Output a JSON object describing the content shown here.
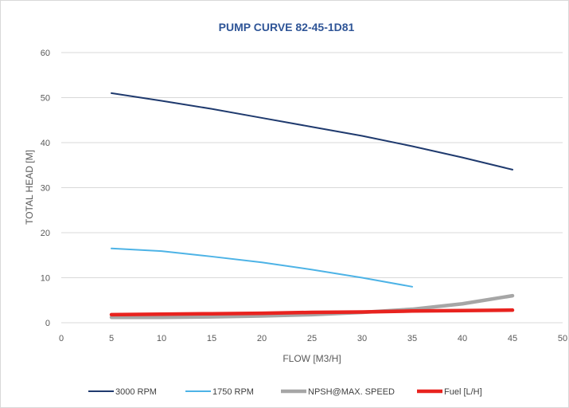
{
  "chart_data": {
    "type": "line",
    "title": "PUMP CURVE 82-45-1D81",
    "xlabel": "FLOW [M3/H]",
    "ylabel": "TOTAL HEAD [M]",
    "xlim": [
      0,
      50
    ],
    "ylim": [
      0,
      60
    ],
    "x_ticks": [
      "0",
      "5",
      "10",
      "15",
      "20",
      "25",
      "30",
      "35",
      "40",
      "45",
      "50"
    ],
    "y_ticks": [
      "0",
      "10",
      "20",
      "30",
      "40",
      "50",
      "60"
    ],
    "grid": "horizontal",
    "legend_position": "bottom",
    "series": [
      {
        "name": "3000 RPM",
        "color": "#1f3a6e",
        "width": "thin",
        "x": [
          5,
          10,
          15,
          20,
          25,
          30,
          35,
          40,
          45
        ],
        "y": [
          51,
          49.3,
          47.5,
          45.5,
          43.5,
          41.5,
          39.2,
          36.7,
          34
        ]
      },
      {
        "name": "1750 RPM",
        "color": "#4db3e6",
        "width": "thin",
        "x": [
          5,
          10,
          15,
          20,
          25,
          30,
          35
        ],
        "y": [
          16.5,
          15.9,
          14.7,
          13.4,
          11.8,
          10,
          8
        ]
      },
      {
        "name": "NPSH@MAX. SPEED",
        "color": "#a6a6a6",
        "width": "thick",
        "x": [
          5,
          10,
          15,
          20,
          25,
          30,
          35,
          40,
          45
        ],
        "y": [
          1.2,
          1.2,
          1.3,
          1.5,
          1.8,
          2.3,
          3.0,
          4.2,
          6.0
        ]
      },
      {
        "name": "Fuel [L/H]",
        "color": "#e8231f",
        "width": "thick",
        "x": [
          5,
          10,
          15,
          20,
          25,
          30,
          35,
          40,
          45
        ],
        "y": [
          1.8,
          1.9,
          2.0,
          2.1,
          2.3,
          2.4,
          2.6,
          2.7,
          2.8
        ]
      }
    ]
  },
  "colors": {
    "title": "#2f5597",
    "grid": "#d9d9d9",
    "tick_text": "#595959"
  }
}
